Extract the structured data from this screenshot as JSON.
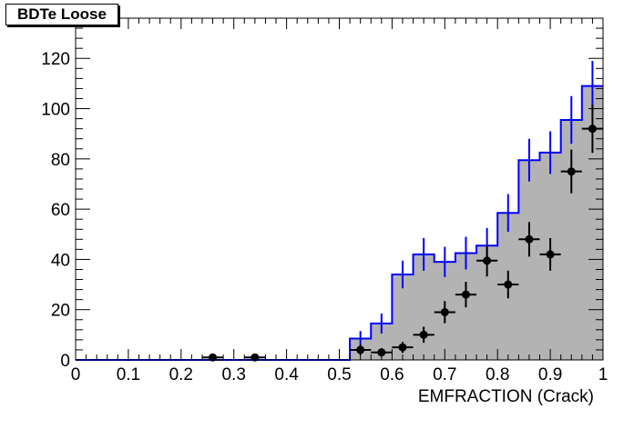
{
  "title": "BDTe Loose",
  "chart_data": {
    "type": "histogram",
    "title": "BDTe Loose",
    "xlabel": "EMFRACTION (Crack)",
    "ylabel": "",
    "xlim": [
      0,
      1
    ],
    "ylim": [
      0,
      136
    ],
    "xticks": [
      0,
      0.1,
      0.2,
      0.3,
      0.4,
      0.5,
      0.6,
      0.7,
      0.8,
      0.9,
      1
    ],
    "xtick_labels": [
      "0",
      "0.1",
      "0.2",
      "0.3",
      "0.4",
      "0.5",
      "0.6",
      "0.7",
      "0.8",
      "0.9",
      "1"
    ],
    "yticks": [
      0,
      20,
      40,
      60,
      80,
      100,
      120
    ],
    "ytick_labels": [
      "0",
      "20",
      "40",
      "60",
      "80",
      "100",
      "120"
    ],
    "bin_width": 0.04,
    "series": [
      {
        "kind": "filled-histogram",
        "color": "#0000ff",
        "fill": "#b3b3b3",
        "bins": [
          {
            "x": 0.52,
            "y": 8.5,
            "err": 3
          },
          {
            "x": 0.56,
            "y": 14.5,
            "err": 4
          },
          {
            "x": 0.6,
            "y": 34,
            "err": 5.5
          },
          {
            "x": 0.64,
            "y": 42,
            "err": 6.5
          },
          {
            "x": 0.68,
            "y": 39,
            "err": 6
          },
          {
            "x": 0.72,
            "y": 42.5,
            "err": 6.5
          },
          {
            "x": 0.76,
            "y": 45.5,
            "err": 7
          },
          {
            "x": 0.8,
            "y": 58.5,
            "err": 7.5
          },
          {
            "x": 0.84,
            "y": 79.5,
            "err": 8.5
          },
          {
            "x": 0.88,
            "y": 82.5,
            "err": 8.5
          },
          {
            "x": 0.92,
            "y": 95.5,
            "err": 9.5
          },
          {
            "x": 0.96,
            "y": 109,
            "err": 10
          }
        ]
      },
      {
        "kind": "points",
        "color": "#000000",
        "points": [
          {
            "x": 0.26,
            "y": 1,
            "err": 1
          },
          {
            "x": 0.34,
            "y": 1,
            "err": 1
          },
          {
            "x": 0.54,
            "y": 4,
            "err": 2
          },
          {
            "x": 0.58,
            "y": 3,
            "err": 1.7
          },
          {
            "x": 0.62,
            "y": 5,
            "err": 2.2
          },
          {
            "x": 0.66,
            "y": 10,
            "err": 3.2
          },
          {
            "x": 0.7,
            "y": 19,
            "err": 4.4
          },
          {
            "x": 0.74,
            "y": 26,
            "err": 5.1
          },
          {
            "x": 0.78,
            "y": 39.5,
            "err": 6.3
          },
          {
            "x": 0.82,
            "y": 30,
            "err": 5.5
          },
          {
            "x": 0.86,
            "y": 48,
            "err": 6.9
          },
          {
            "x": 0.9,
            "y": 42,
            "err": 6.5
          },
          {
            "x": 0.94,
            "y": 75,
            "err": 8.7
          },
          {
            "x": 0.98,
            "y": 92,
            "err": 9.6
          }
        ]
      }
    ]
  }
}
